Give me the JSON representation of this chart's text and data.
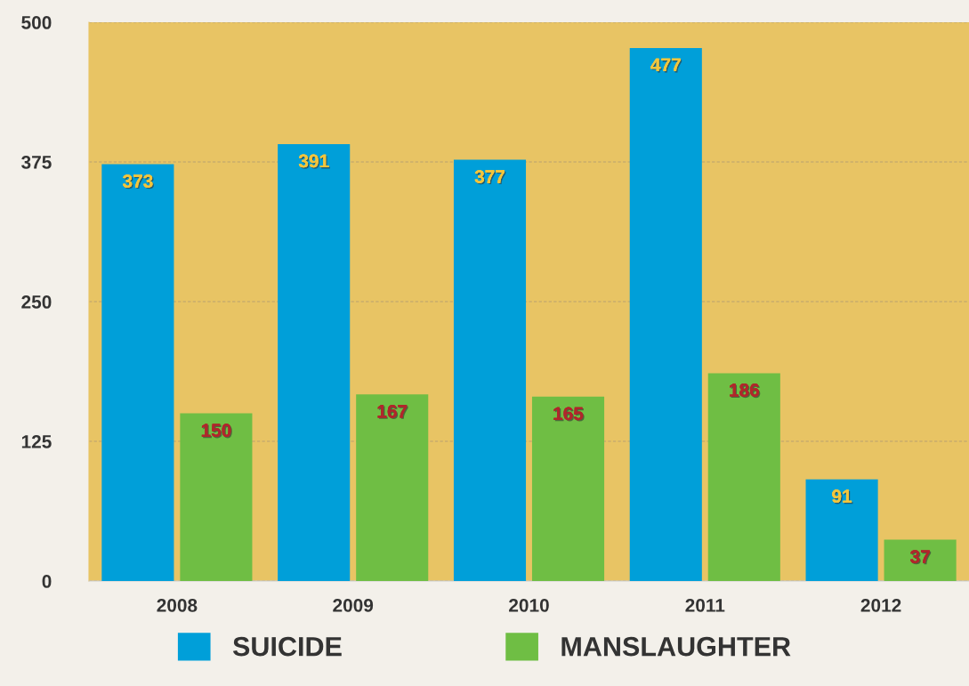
{
  "chart_data": {
    "type": "bar",
    "categories": [
      "2008",
      "2009",
      "2010",
      "2011",
      "2012"
    ],
    "series": [
      {
        "name": "SUICIDE",
        "color": "#009fd9",
        "values": [
          373,
          391,
          377,
          477,
          91
        ]
      },
      {
        "name": "MANSLAUGHTER",
        "color": "#6fbe44",
        "values": [
          150,
          167,
          165,
          186,
          37
        ]
      }
    ],
    "ylim": [
      0,
      500
    ],
    "yticks": [
      0,
      125,
      250,
      375,
      500
    ],
    "grid": "y",
    "legend": "bottom",
    "data_labels": true
  }
}
